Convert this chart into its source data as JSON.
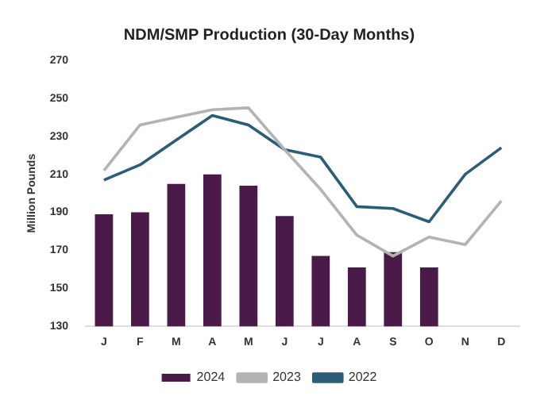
{
  "chart_data": {
    "type": "bar",
    "title": "NDM/SMP Production (30-Day Months)",
    "ylabel": "Million Pounds",
    "categories": [
      "J",
      "F",
      "M",
      "A",
      "M",
      "J",
      "J",
      "A",
      "S",
      "O",
      "N",
      "D"
    ],
    "series": [
      {
        "name": "2024",
        "color": "#4a1a48",
        "values": [
          189,
          190,
          205,
          210,
          204,
          188,
          167,
          161,
          169,
          161,
          null,
          null
        ]
      },
      {
        "name": "2023",
        "type": "line",
        "color": "#b3b3b3",
        "values": [
          212,
          236,
          240,
          244,
          245,
          223,
          202,
          178,
          167,
          177,
          173,
          196
        ]
      },
      {
        "name": "2022",
        "type": "line",
        "color": "#2b5d78",
        "values": [
          207,
          215,
          228,
          241,
          236,
          223,
          219,
          193,
          192,
          185,
          210,
          224
        ]
      }
    ],
    "ylim": [
      130,
      270
    ],
    "yticks": [
      130,
      150,
      170,
      190,
      210,
      230,
      250,
      270
    ],
    "grid": false,
    "legend": "bottom",
    "marker": "none"
  }
}
